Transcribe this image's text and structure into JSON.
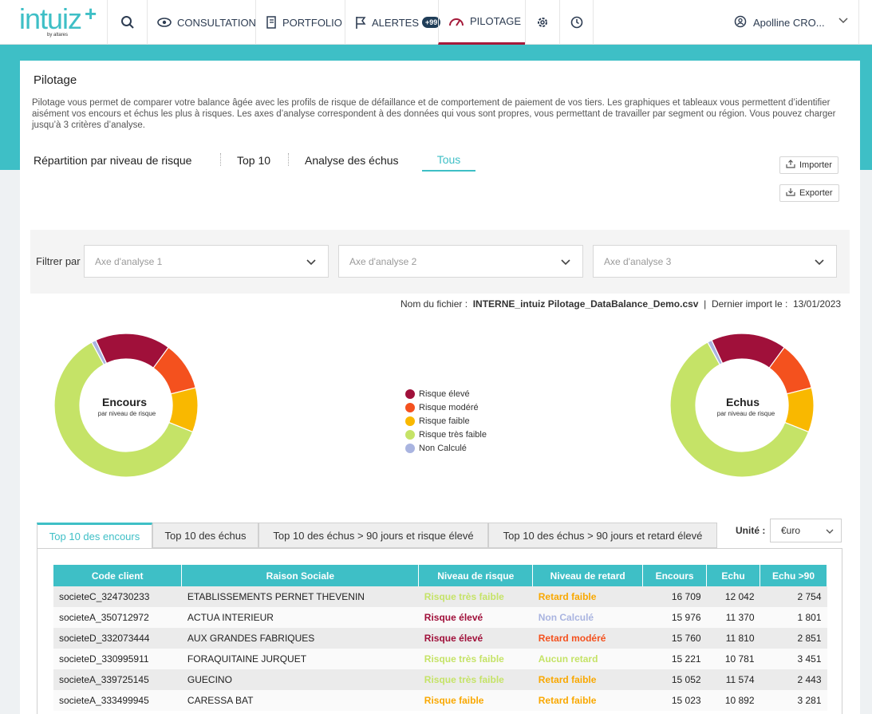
{
  "brand": {
    "name": "intuiz",
    "plus": "+",
    "byline": "by altares",
    "accent": "#3ebfc6"
  },
  "nav": {
    "items": [
      {
        "label": "CONSULTATION",
        "icon": "eye-icon"
      },
      {
        "label": "PORTFOLIO",
        "icon": "notebook-icon"
      },
      {
        "label": "ALERTES",
        "icon": "flag-icon",
        "badge": "+99"
      },
      {
        "label": "PILOTAGE",
        "icon": "gauge-icon",
        "active": true
      }
    ],
    "user": "Apolline CRO..."
  },
  "page": {
    "title": "Pilotage",
    "description": "Pilotage vous permet de comparer votre balance âgée avec les profils de risque de défaillance et de comportement de paiement de vos tiers. Les graphiques et tableaux vous permettent d’identifier aisément vos encours et échus les plus à risques. Les axes d’analyse correspondent à des données qui vous sont propres, vous permettant de travailler par segment ou région. Vous pouvez charger jusqu’à 3 critères d’analyse.",
    "tabs": [
      "Répartition par niveau de risque",
      "Top 10",
      "Analyse des échus",
      "Tous"
    ],
    "import_label": "Importer",
    "export_label": "Exporter"
  },
  "filters": {
    "label": "Filtrer par",
    "axes": [
      "Axe d'analyse 1",
      "Axe d'analyse 2",
      "Axe d'analyse 3"
    ]
  },
  "file": {
    "name_label": "Nom du fichier",
    "name": "INTERNE_intuiz Pilotage_DataBalance_Demo.csv",
    "import_label": "Dernier import le",
    "date": "13/01/2023"
  },
  "chart_data": [
    {
      "type": "pie",
      "title": "Encours",
      "subtitle": "par niveau de risque",
      "categories": [
        "Risque élevé",
        "Risque modéré",
        "Risque faible",
        "Risque très faible",
        "Non Calculé"
      ],
      "values": [
        17,
        11,
        10,
        61,
        1
      ],
      "colors": [
        "#a0103a",
        "#f4511e",
        "#f9b800",
        "#c5e367",
        "#a9b4e0"
      ]
    },
    {
      "type": "pie",
      "title": "Echus",
      "subtitle": "par niveau de risque",
      "categories": [
        "Risque élevé",
        "Risque modéré",
        "Risque faible",
        "Risque très faible",
        "Non Calculé"
      ],
      "values": [
        17,
        11,
        10,
        61,
        1
      ],
      "colors": [
        "#a0103a",
        "#f4511e",
        "#f9b800",
        "#c5e367",
        "#a9b4e0"
      ]
    }
  ],
  "legend": [
    {
      "label": "Risque élevé",
      "color": "#a0103a"
    },
    {
      "label": "Risque modéré",
      "color": "#f4511e"
    },
    {
      "label": "Risque faible",
      "color": "#f9b800"
    },
    {
      "label": "Risque très faible",
      "color": "#c5e367"
    },
    {
      "label": "Non Calculé",
      "color": "#a9b4e0"
    }
  ],
  "top10": {
    "tabs": [
      "Top 10 des encours",
      "Top 10 des échus",
      "Top 10 des échus > 90 jours et risque élevé",
      "Top 10 des échus > 90 jours et retard élevé"
    ],
    "unit_label": "Unité :",
    "unit_value": "€uro",
    "columns": [
      "Code client",
      "Raison Sociale",
      "Niveau de risque",
      "Niveau de retard",
      "Encours",
      "Echu",
      "Echu >90"
    ],
    "rows": [
      [
        "societeC_324730233",
        "ETABLISSEMENTS PERNET THEVENIN",
        "Risque très faible",
        "Retard faible",
        "16 709",
        "12 042",
        "2 754"
      ],
      [
        "societeA_350712972",
        "ACTUA INTERIEUR",
        "Risque élevé",
        "Non Calculé",
        "15 976",
        "11 370",
        "1 801"
      ],
      [
        "societeD_332073444",
        "AUX GRANDES FABRIQUES",
        "Risque élevé",
        "Retard modéré",
        "15 760",
        "11 810",
        "2 851"
      ],
      [
        "societeD_330995911",
        "FORAQUITAINE JURQUET",
        "Risque très faible",
        "Aucun retard",
        "15 221",
        "10 781",
        "3 451"
      ],
      [
        "societeA_339725145",
        "GUECINO",
        "Risque très faible",
        "Retard faible",
        "15 052",
        "11 574",
        "2 443"
      ],
      [
        "societeA_333499945",
        "CARESSA BAT",
        "Risque faible",
        "Retard faible",
        "15 023",
        "10 892",
        "3 281"
      ]
    ],
    "level_colors": {
      "Risque très faible": "#c5e367",
      "Risque élevé": "#a0103a",
      "Risque faible": "#f9a800",
      "Retard faible": "#f9a800",
      "Non Calculé": "#a9b4e0",
      "Retard modéré": "#f4511e",
      "Aucun retard": "#c5e367"
    }
  }
}
